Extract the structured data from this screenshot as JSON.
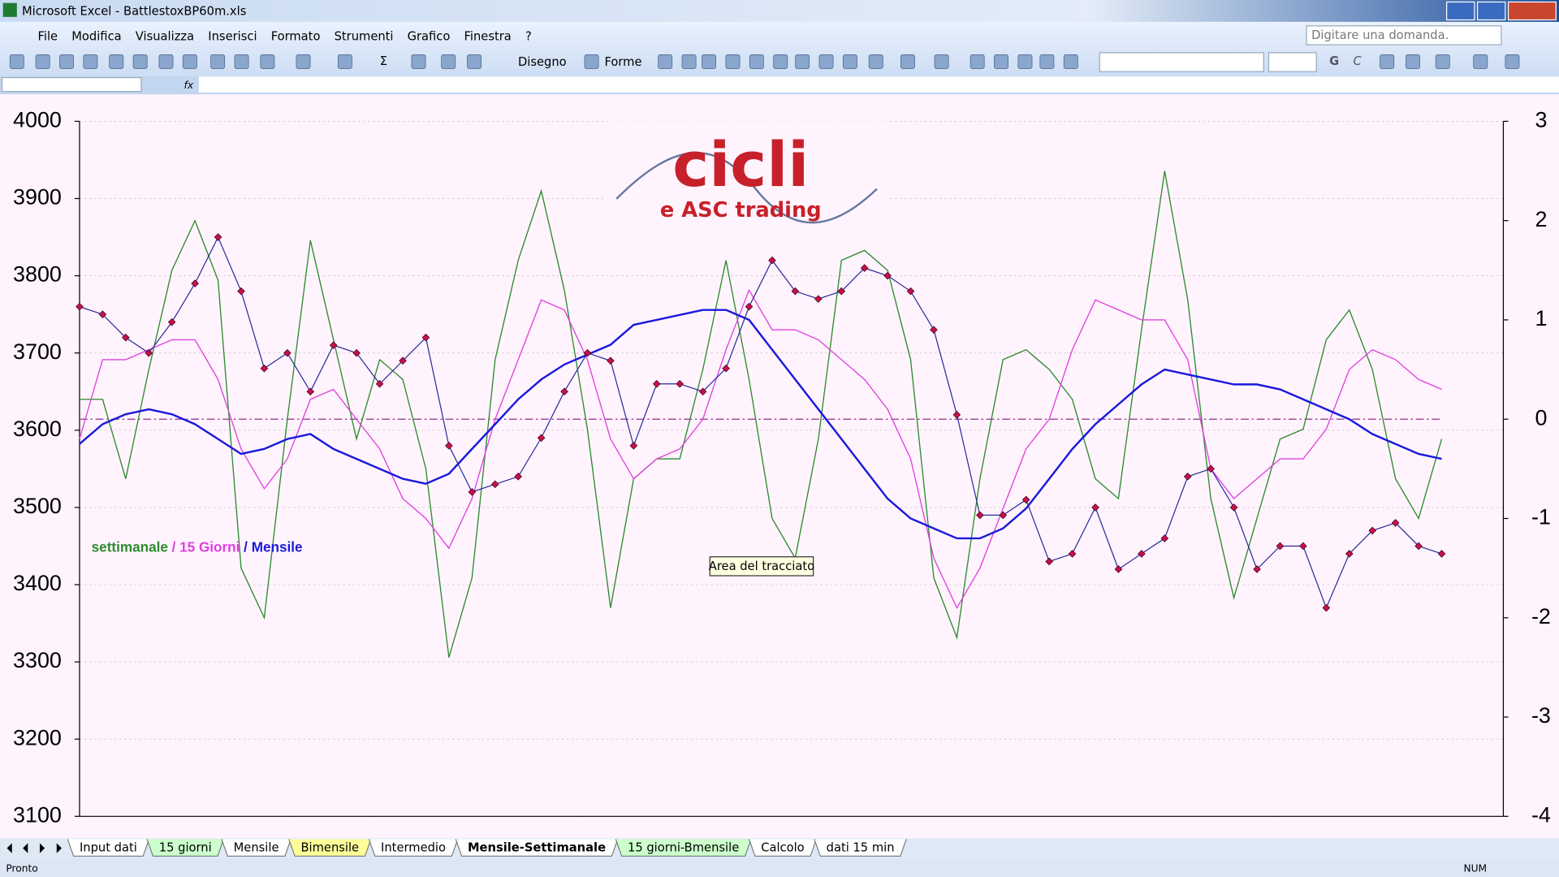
{
  "window": {
    "title": "Microsoft Excel - BattlestoxBP60m.xls"
  },
  "menu": [
    "File",
    "Modifica",
    "Visualizza",
    "Inserisci",
    "Formato",
    "Strumenti",
    "Grafico",
    "Finestra",
    "?"
  ],
  "help_box": "Digitare una domanda.",
  "toolbar": {
    "draw": "Disegno",
    "shapes": "Forme",
    "bold": "G",
    "italic": "C",
    "sigma": "Σ"
  },
  "formula_bar": {
    "fx": "fx"
  },
  "logo": {
    "title": "cicli",
    "subtitle": "e ASC trading"
  },
  "tooltip": "Area del tracciato",
  "chart_data": {
    "type": "line",
    "legend_separator": "/",
    "categories": [
      null,
      null,
      null,
      null,
      null,
      null,
      null,
      null,
      null,
      null,
      null,
      null,
      null,
      null,
      null,
      null,
      null,
      null,
      null,
      null,
      null,
      null,
      null,
      null,
      null,
      null,
      null,
      null,
      null,
      null,
      null,
      null,
      null,
      null,
      null,
      null,
      null,
      null,
      null,
      null,
      null,
      null,
      null,
      null,
      null,
      null,
      null,
      null,
      null,
      null,
      null,
      null,
      null,
      null,
      null,
      null,
      null,
      null,
      null,
      null
    ],
    "ylim": [
      3100,
      4000
    ],
    "yticks": [
      3100,
      3200,
      3300,
      3400,
      3500,
      3600,
      3700,
      3800,
      3900,
      4000
    ],
    "y2lim": [
      -4,
      3
    ],
    "y2ticks": [
      -4,
      -3,
      -2,
      -1,
      0,
      1,
      2,
      3
    ],
    "grid": true,
    "hline": {
      "value": 0,
      "axis": "y2",
      "color": "#a050a0"
    },
    "series": [
      {
        "name": "settimanale",
        "color": "#2e8b2e",
        "axis": "y2",
        "values": [
          0.2,
          0.2,
          -0.6,
          0.5,
          1.5,
          2.0,
          1.4,
          -1.5,
          -2.0,
          0.0,
          1.8,
          0.8,
          -0.2,
          0.6,
          0.4,
          -0.5,
          -2.4,
          -1.6,
          0.6,
          1.6,
          2.3,
          1.3,
          -0.1,
          -1.9,
          -0.6,
          -0.4,
          -0.4,
          0.5,
          1.6,
          0.4,
          -1.0,
          -1.4,
          -0.2,
          1.6,
          1.7,
          1.5,
          0.6,
          -1.6,
          -2.2,
          -0.6,
          0.6,
          0.7,
          0.5,
          0.2,
          -0.6,
          -0.8,
          0.9,
          2.5,
          1.2,
          -0.8,
          -1.8,
          -1.0,
          -0.2,
          -0.1,
          0.8,
          1.1,
          0.5,
          -0.6,
          -1.0,
          -0.2
        ]
      },
      {
        "name": "15 Giorni",
        "color": "#e040e0",
        "axis": "y2",
        "values": [
          -0.2,
          0.6,
          0.6,
          0.7,
          0.8,
          0.8,
          0.4,
          -0.3,
          -0.7,
          -0.4,
          0.2,
          0.3,
          0.0,
          -0.3,
          -0.8,
          -1.0,
          -1.3,
          -0.8,
          0.0,
          0.6,
          1.2,
          1.1,
          0.6,
          -0.2,
          -0.6,
          -0.4,
          -0.3,
          0.0,
          0.7,
          1.3,
          0.9,
          0.9,
          0.8,
          0.6,
          0.4,
          0.1,
          -0.4,
          -1.4,
          -1.9,
          -1.5,
          -0.9,
          -0.3,
          0.0,
          0.7,
          1.2,
          1.1,
          1.0,
          1.0,
          0.6,
          -0.5,
          -0.8,
          -0.6,
          -0.4,
          -0.4,
          -0.1,
          0.5,
          0.7,
          0.6,
          0.4,
          0.3
        ]
      },
      {
        "name": "Mensile",
        "color": "#1a1adc",
        "axis": "y2",
        "values": [
          -0.25,
          -0.05,
          0.05,
          0.1,
          0.05,
          -0.05,
          -0.2,
          -0.35,
          -0.3,
          -0.2,
          -0.15,
          -0.3,
          -0.4,
          -0.5,
          -0.6,
          -0.65,
          -0.55,
          -0.3,
          -0.05,
          0.2,
          0.4,
          0.55,
          0.65,
          0.75,
          0.95,
          1.0,
          1.05,
          1.1,
          1.1,
          1.0,
          0.7,
          0.4,
          0.1,
          -0.2,
          -0.5,
          -0.8,
          -1.0,
          -1.1,
          -1.2,
          -1.2,
          -1.1,
          -0.9,
          -0.6,
          -0.3,
          -0.05,
          0.15,
          0.35,
          0.5,
          0.45,
          0.4,
          0.35,
          0.35,
          0.3,
          0.2,
          0.1,
          0.0,
          -0.15,
          -0.25,
          -0.35,
          -0.4
        ]
      },
      {
        "color": "#2a2a9a",
        "marker_color": "#c8104a",
        "values": [
          3760,
          3750,
          3720,
          3700,
          3740,
          3790,
          3850,
          3780,
          3680,
          3700,
          3650,
          3710,
          3700,
          3660,
          3690,
          3720,
          3580,
          3520,
          3530,
          3540,
          3590,
          3650,
          3700,
          3690,
          3580,
          3660,
          3660,
          3650,
          3680,
          3760,
          3820,
          3780,
          3770,
          3780,
          3810,
          3800,
          3780,
          3730,
          3620,
          3490,
          3490,
          3510,
          3430,
          3440,
          3500,
          3420,
          3440,
          3460,
          3540,
          3550,
          3500,
          3420,
          3450,
          3450,
          3370,
          3440,
          3470,
          3480,
          3450,
          3440
        ]
      }
    ]
  },
  "sheet_tabs": [
    {
      "label": "Input dati",
      "color": "#ffffff"
    },
    {
      "label": "15 giorni",
      "color": "#ccffcc"
    },
    {
      "label": "Mensile",
      "color": "#ffffff"
    },
    {
      "label": "Bimensile",
      "color": "#ffff99"
    },
    {
      "label": "Intermedio",
      "color": "#ffffff"
    },
    {
      "label": "Mensile-Settimanale",
      "color": "#ffffff",
      "active": true
    },
    {
      "label": "15 giorni-Bmensile",
      "color": "#ccffcc"
    },
    {
      "label": "Calcolo",
      "color": "#ffffff"
    },
    {
      "label": "dati 15 min",
      "color": "#ffffff"
    }
  ],
  "status": {
    "left": "Pronto",
    "num": "NUM"
  }
}
